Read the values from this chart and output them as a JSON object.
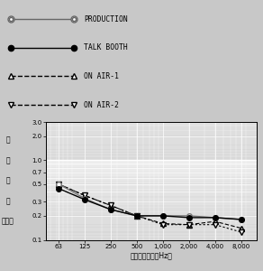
{
  "freqs": [
    63,
    125,
    250,
    500,
    1000,
    2000,
    4000,
    8000
  ],
  "production": [
    0.5,
    0.33,
    0.24,
    0.2,
    0.2,
    0.2,
    0.19,
    0.18
  ],
  "talk_booth": [
    0.44,
    0.32,
    0.24,
    0.2,
    0.2,
    0.19,
    0.19,
    0.18
  ],
  "on_air1": [
    0.5,
    0.36,
    0.27,
    0.2,
    0.16,
    0.155,
    0.17,
    0.14
  ],
  "on_air2": [
    0.5,
    0.36,
    0.27,
    0.2,
    0.155,
    0.155,
    0.155,
    0.125
  ],
  "ylim": [
    0.1,
    3.0
  ],
  "xlim_left": 45,
  "xlim_right": 12000,
  "bg_color": "#d8d8d8",
  "grid_color": "#ffffff",
  "legend_labels": [
    "PRODUCTION",
    "TALK BOOTH",
    "ON AIR-1",
    "ON AIR-2"
  ],
  "xlabel": "周　波　数　（Hz）",
  "ylabel_lines": [
    "残",
    "響",
    "時",
    "間",
    "（秒）"
  ],
  "yticks": [
    0.1,
    0.2,
    0.3,
    0.5,
    0.7,
    1.0,
    2.0,
    3.0
  ],
  "ytick_labels": [
    "0.1",
    "0.2",
    "0.3",
    "0.5",
    "0.7",
    "1.0",
    "2.0",
    "3.0"
  ],
  "xtick_labels": [
    "63",
    "125",
    "250",
    "500",
    "1,000",
    "2,000",
    "4,000",
    "8,000"
  ]
}
